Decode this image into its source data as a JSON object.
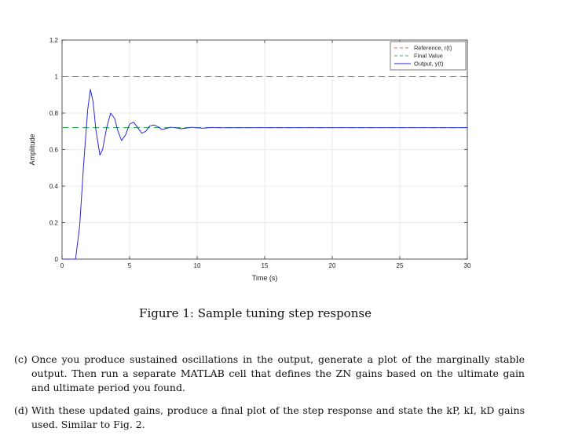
{
  "chart_data": {
    "type": "line",
    "title": "",
    "xlabel": "Time (s)",
    "ylabel": "Amplitude",
    "xlim": [
      0,
      30
    ],
    "ylim": [
      0,
      1.2
    ],
    "xticks": [
      0,
      5,
      10,
      15,
      20,
      25,
      30
    ],
    "xtick_labels": [
      "0",
      "5",
      "10",
      "15",
      "20",
      "25",
      "30"
    ],
    "yticks": [
      0,
      0.2,
      0.4,
      0.6,
      0.8,
      1,
      1.2
    ],
    "ytick_labels": [
      "0",
      "0.2",
      "0.4",
      "0.6",
      "0.8",
      "1",
      "1.2"
    ],
    "grid": true,
    "legend_position": "top-right",
    "series": [
      {
        "name": "Reference, r(t)",
        "style": "dashed",
        "color": "#e0605a",
        "x": [
          0,
          30
        ],
        "y": [
          1,
          1
        ]
      },
      {
        "name": "Final Value",
        "style": "dashed",
        "color": "#2fa84f",
        "x": [
          0,
          30
        ],
        "y": [
          0.72,
          0.72
        ]
      },
      {
        "name": "Output, y(t)",
        "style": "solid",
        "color": "#2a2ad8",
        "x": [
          0,
          1.0,
          1.3,
          1.6,
          1.9,
          2.1,
          2.3,
          2.5,
          2.8,
          3.0,
          3.3,
          3.6,
          3.9,
          4.1,
          4.4,
          4.7,
          5.0,
          5.3,
          5.6,
          5.9,
          6.2,
          6.5,
          6.8,
          7.1,
          7.4,
          7.7,
          8.0,
          8.4,
          8.8,
          9.2,
          9.6,
          10.0,
          10.5,
          11.0,
          12.0,
          14.0,
          17.0,
          20.0,
          25.0,
          30.0
        ],
        "y": [
          0,
          0,
          0.18,
          0.52,
          0.82,
          0.93,
          0.86,
          0.71,
          0.57,
          0.6,
          0.72,
          0.8,
          0.77,
          0.71,
          0.65,
          0.68,
          0.74,
          0.75,
          0.72,
          0.69,
          0.7,
          0.73,
          0.735,
          0.725,
          0.71,
          0.715,
          0.722,
          0.72,
          0.714,
          0.718,
          0.722,
          0.719,
          0.717,
          0.721,
          0.719,
          0.72,
          0.72,
          0.72,
          0.72,
          0.72
        ]
      }
    ]
  },
  "caption": "Figure 1: Sample tuning step response",
  "items": [
    {
      "marker": "(c)",
      "text": "Once you produce sustained oscillations in the output, generate a plot of the marginally stable output. Then run a separate MATLAB cell that defines the ZN gains based on the ultimate gain and ultimate period you found."
    },
    {
      "marker": "(d)",
      "text": "With these updated gains, produce a final plot of the step response and state the kP, kI, kD gains used. Similar to Fig. 2."
    }
  ]
}
